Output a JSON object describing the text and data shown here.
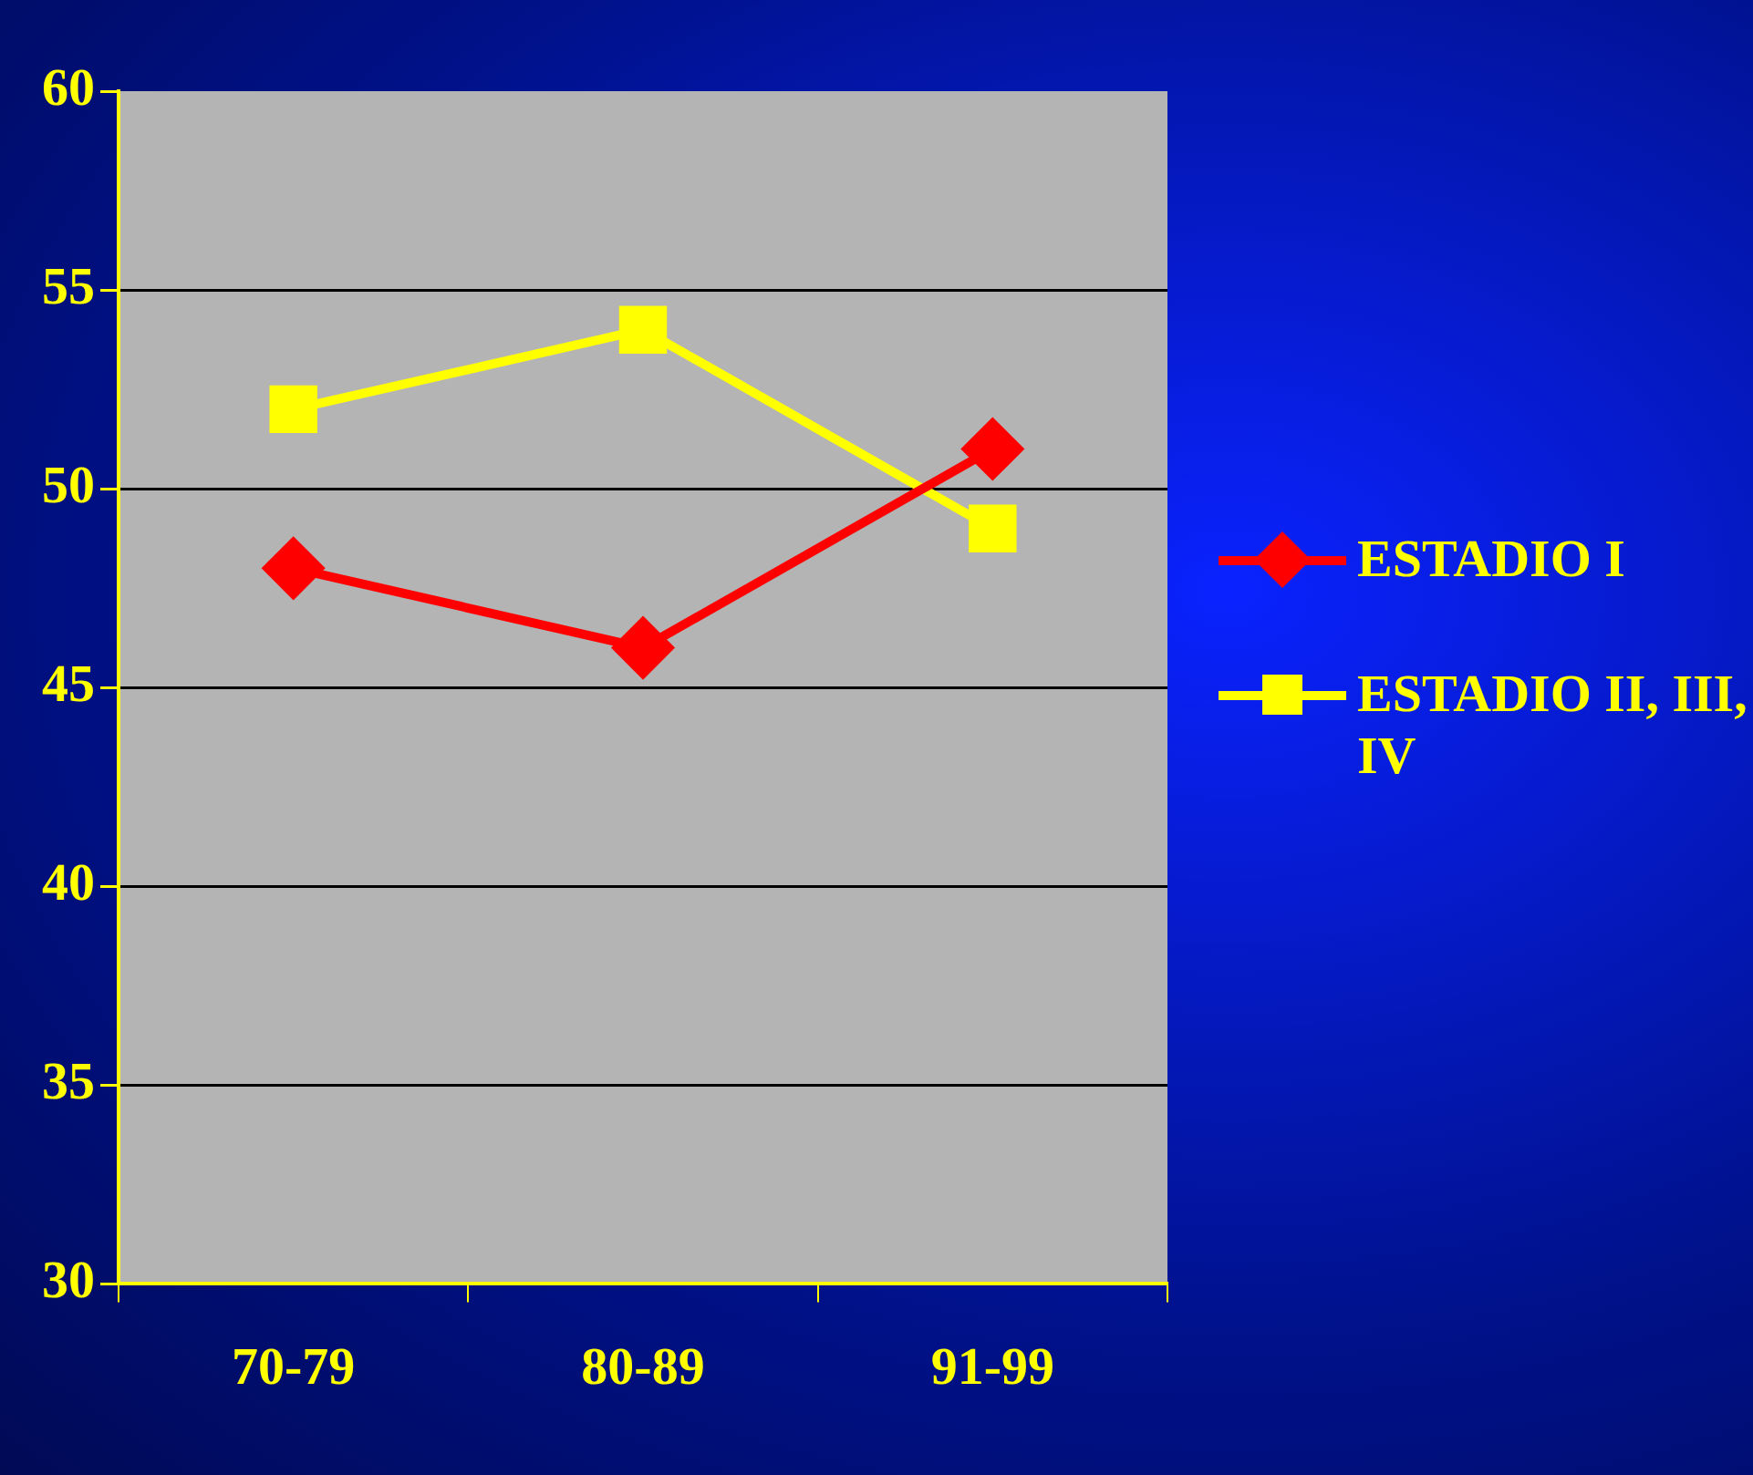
{
  "chart_data": {
    "type": "line",
    "categories": [
      "70-79",
      "80-89",
      "91-99"
    ],
    "series": [
      {
        "name": "ESTADIO I",
        "color": "#ff0000",
        "values": [
          48,
          46,
          51
        ],
        "marker": "diamond"
      },
      {
        "name": "ESTADIO II, III, IV",
        "color": "#ffff00",
        "values": [
          52,
          54,
          49
        ],
        "marker": "square"
      }
    ],
    "ylim": [
      30,
      60
    ],
    "yticks": [
      30,
      35,
      40,
      45,
      50,
      55,
      60
    ],
    "grid": "y",
    "legend": "right"
  }
}
